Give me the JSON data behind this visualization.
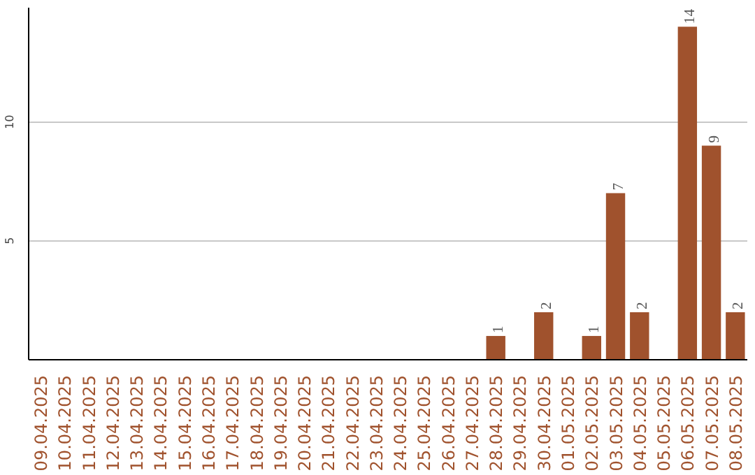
{
  "chart_data": {
    "type": "bar",
    "categories": [
      "09.04.2025",
      "10.04.2025",
      "11.04.2025",
      "12.04.2025",
      "13.04.2025",
      "14.04.2025",
      "15.04.2025",
      "16.04.2025",
      "17.04.2025",
      "18.04.2025",
      "19.04.2025",
      "20.04.2025",
      "21.04.2025",
      "22.04.2025",
      "23.04.2025",
      "24.04.2025",
      "25.04.2025",
      "26.04.2025",
      "27.04.2025",
      "28.04.2025",
      "29.04.2025",
      "30.04.2025",
      "01.05.2025",
      "02.05.2025",
      "03.05.2025",
      "04.05.2025",
      "05.05.2025",
      "06.05.2025",
      "07.05.2025",
      "08.05.2025"
    ],
    "values": [
      0,
      0,
      0,
      0,
      0,
      0,
      0,
      0,
      0,
      0,
      0,
      0,
      0,
      0,
      0,
      0,
      0,
      0,
      0,
      1,
      0,
      2,
      0,
      1,
      7,
      2,
      0,
      14,
      9,
      2
    ],
    "value_labels": [
      null,
      null,
      null,
      null,
      null,
      null,
      null,
      null,
      null,
      null,
      null,
      null,
      null,
      null,
      null,
      null,
      null,
      null,
      null,
      "1",
      null,
      "2",
      null,
      "1",
      "7",
      "2",
      null,
      "14",
      "9",
      "2"
    ],
    "color": "#a0522d",
    "ylim": [
      0,
      14.8
    ],
    "yticks": [
      5,
      10
    ],
    "grid": "y"
  }
}
